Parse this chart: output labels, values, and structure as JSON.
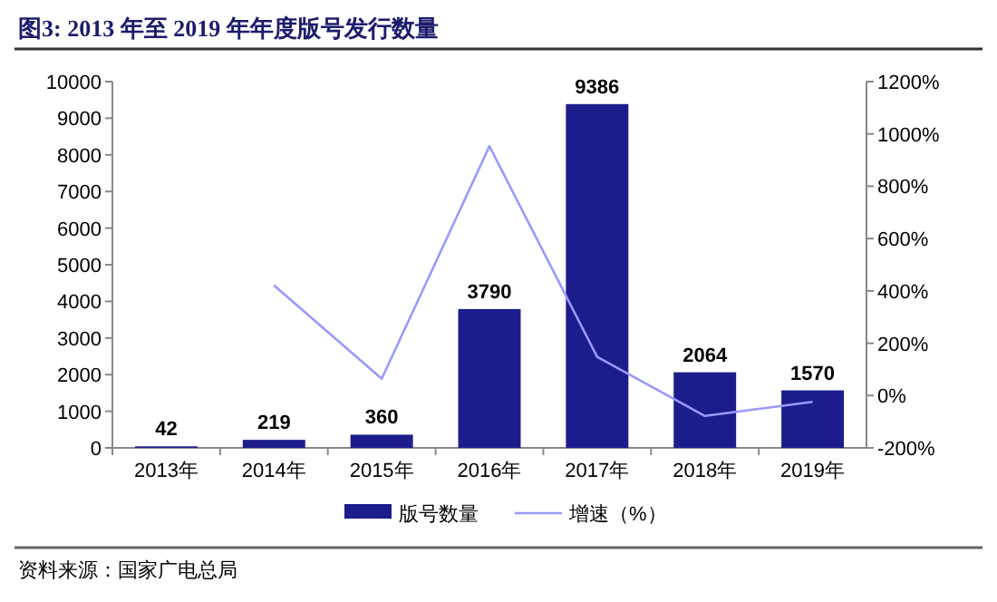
{
  "chart_data": {
    "type": "bar",
    "title": "图3:   2013 年至 2019 年年度版号发行数量",
    "categories": [
      "2013年",
      "2014年",
      "2015年",
      "2016年",
      "2017年",
      "2018年",
      "2019年"
    ],
    "series": [
      {
        "name": "版号数量",
        "color": "#1c1c8c",
        "values": [
          42,
          219,
          360,
          3790,
          9386,
          2064,
          1570
        ],
        "value_labels": [
          "42",
          "219",
          "360",
          "3790",
          "9386",
          "2064",
          "1570"
        ]
      },
      {
        "name": "增速（%）",
        "type": "line",
        "axis": "y2",
        "color": "#9999ff",
        "values": [
          null,
          421,
          64,
          953,
          148,
          -78,
          -24
        ]
      }
    ],
    "ylim": [
      0,
      10000
    ],
    "yticks": [
      0,
      1000,
      2000,
      3000,
      4000,
      5000,
      6000,
      7000,
      8000,
      9000,
      10000
    ],
    "y2lim": [
      -200,
      1200
    ],
    "y2ticks": [
      {
        "value": -200,
        "label": "-200%"
      },
      {
        "value": 0,
        "label": "0%"
      },
      {
        "value": 200,
        "label": "200%"
      },
      {
        "value": 400,
        "label": "400%"
      },
      {
        "value": 600,
        "label": "600%"
      },
      {
        "value": 800,
        "label": "800%"
      },
      {
        "value": 1000,
        "label": "1000%"
      },
      {
        "value": 1200,
        "label": "1200%"
      }
    ],
    "legend": "bottom",
    "annotations": [
      "资料来源：国家广电总局"
    ]
  }
}
